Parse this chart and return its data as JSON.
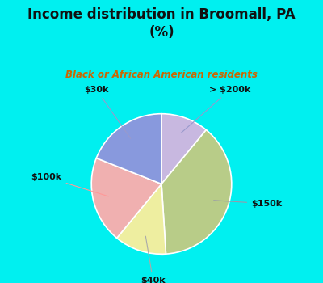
{
  "title": "Income distribution in Broomall, PA\n(%)",
  "subtitle": "Black or African American residents",
  "slices": [
    {
      "label": "> $200k",
      "value": 11,
      "color": "#c8b8e0"
    },
    {
      "label": "$150k",
      "value": 38,
      "color": "#b8cc88"
    },
    {
      "label": "$40k",
      "value": 12,
      "color": "#eeeea0"
    },
    {
      "label": "$100k",
      "value": 20,
      "color": "#f0b0b0"
    },
    {
      "label": "$30k",
      "value": 19,
      "color": "#8899dd"
    }
  ],
  "bg_color": "#00f0f0",
  "chart_bg_color": "#e0f0e0",
  "title_color": "#111111",
  "subtitle_color": "#cc6600",
  "label_color": "#111111",
  "wedge_edge_color": "#ffffff",
  "line_color_200k": "#9999cc",
  "line_color_150k": "#9999aa",
  "line_color_40k": "#aaaaaa",
  "line_color_100k": "#ff9999",
  "line_color_30k": "#9999cc"
}
